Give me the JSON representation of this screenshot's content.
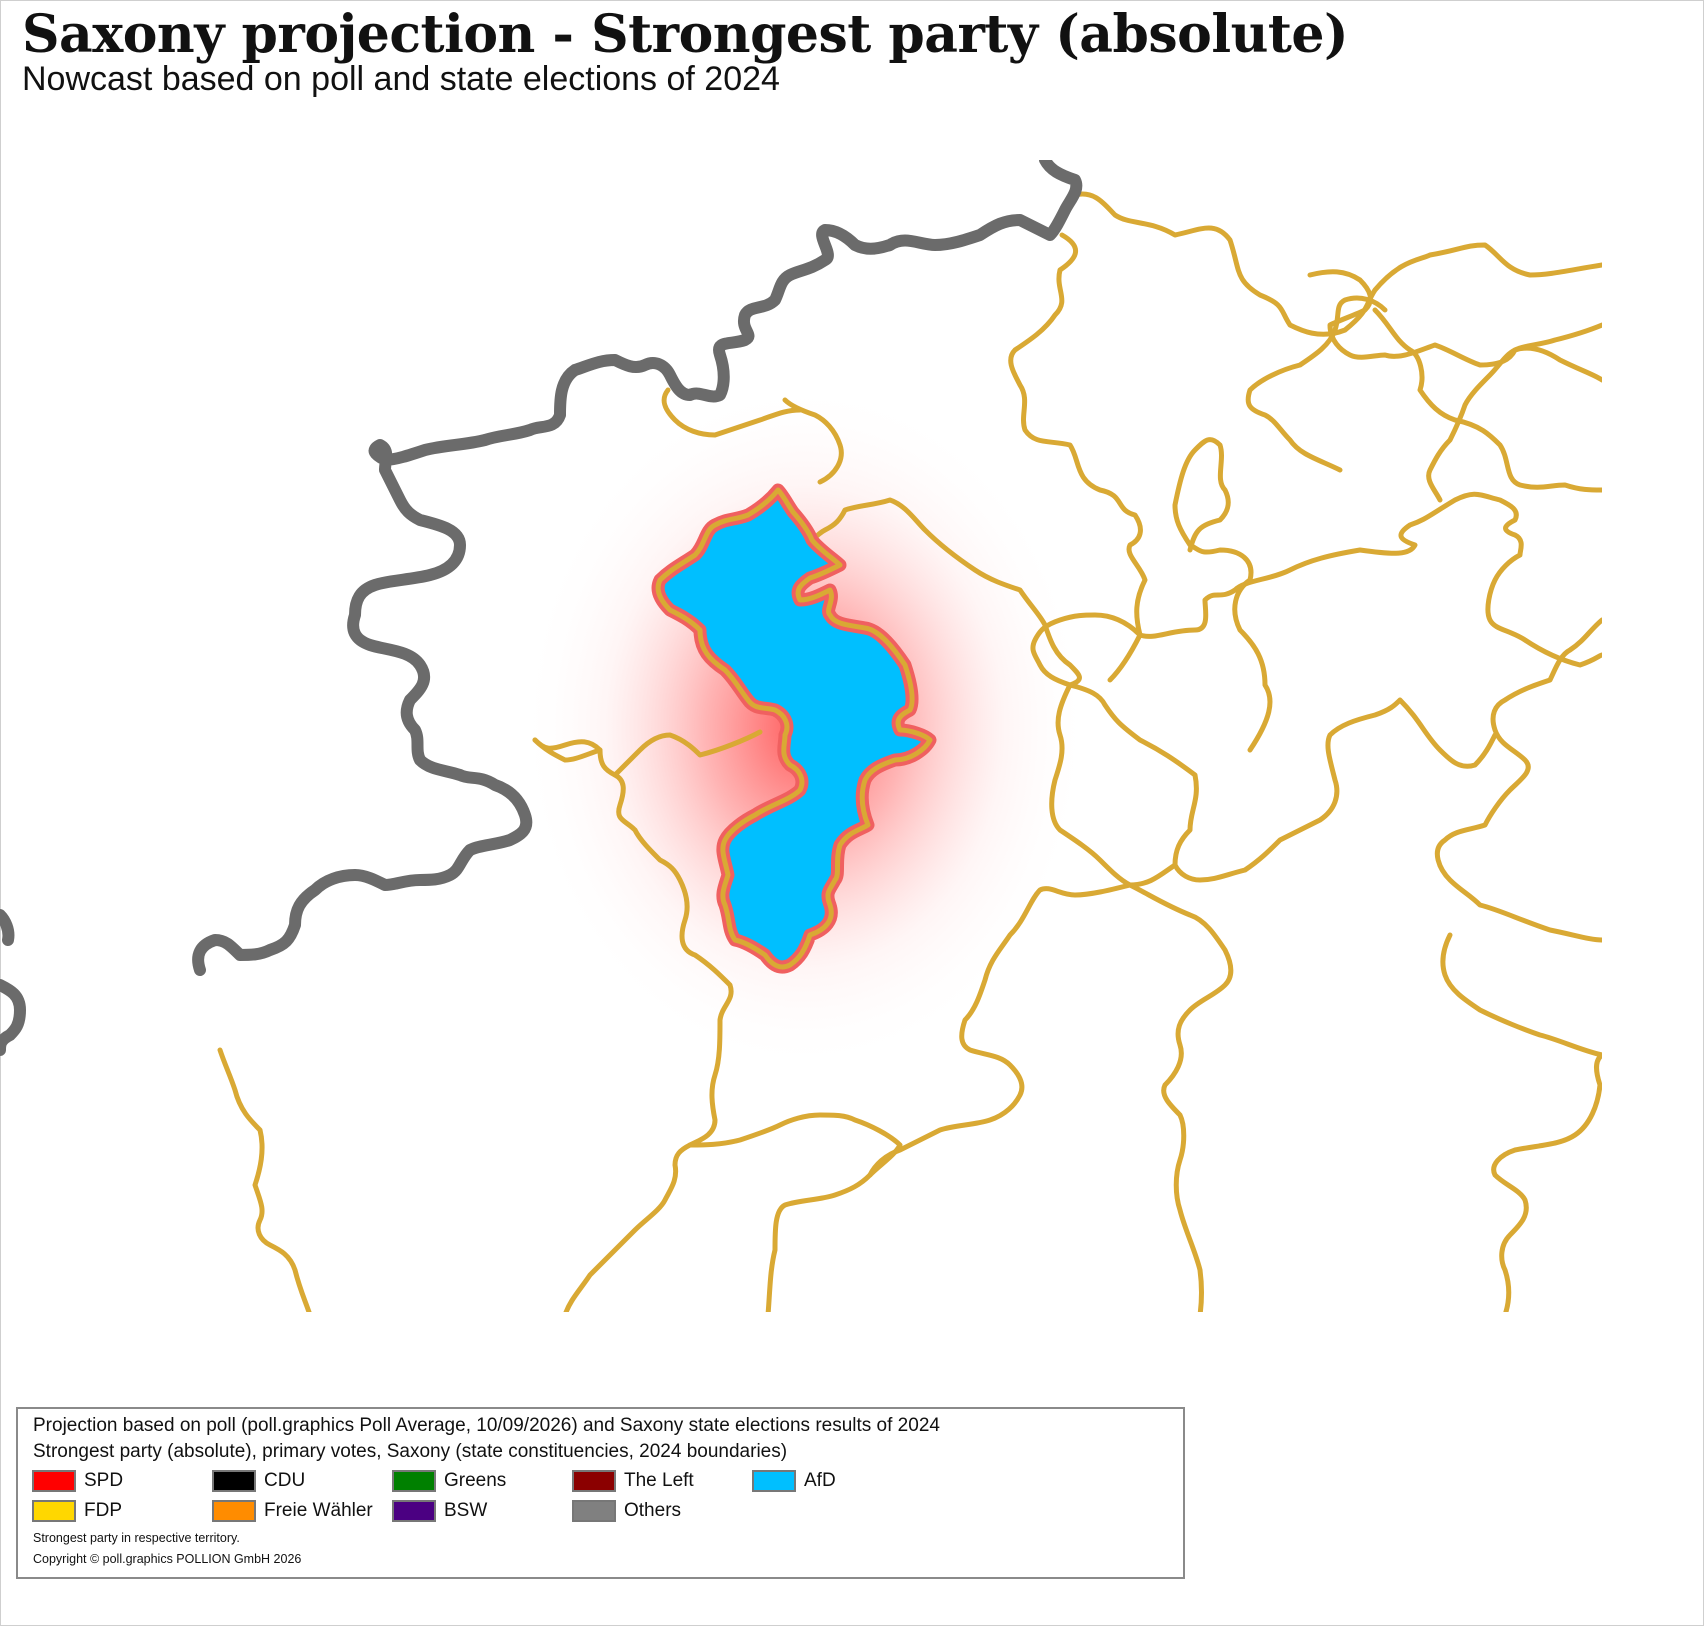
{
  "title": "Saxony projection - Strongest party (absolute)",
  "subtitle": "Nowcast based on poll and state elections of 2024",
  "map": {
    "highlighted_constituency_party": "AfD",
    "colors": {
      "constituency_border": "#d9a934",
      "state_border": "#6b6b6b",
      "highlight_fill": "#00bfff",
      "highlight_outline": "#f06060",
      "highlight_glow": "#ff3a3a"
    }
  },
  "legend": {
    "line1": "Projection based on poll (poll.graphics Poll Average, 10/09/2026) and Saxony state elections results of 2024",
    "line2": "Strongest party (absolute), primary votes, Saxony (state constituencies, 2024 boundaries)",
    "items": [
      {
        "label": "SPD",
        "color": "#ff0000"
      },
      {
        "label": "CDU",
        "color": "#000000"
      },
      {
        "label": "Greens",
        "color": "#008000"
      },
      {
        "label": "The Left",
        "color": "#8b0000"
      },
      {
        "label": "AfD",
        "color": "#00bfff"
      },
      {
        "label": "FDP",
        "color": "#ffd700"
      },
      {
        "label": "Freie Wähler",
        "color": "#ff8c00"
      },
      {
        "label": "BSW",
        "color": "#4b0082"
      },
      {
        "label": "Others",
        "color": "#808080"
      }
    ],
    "note1": "Strongest party in respective territory.",
    "note2": "Copyright © poll.graphics POLLION GmbH 2026"
  }
}
